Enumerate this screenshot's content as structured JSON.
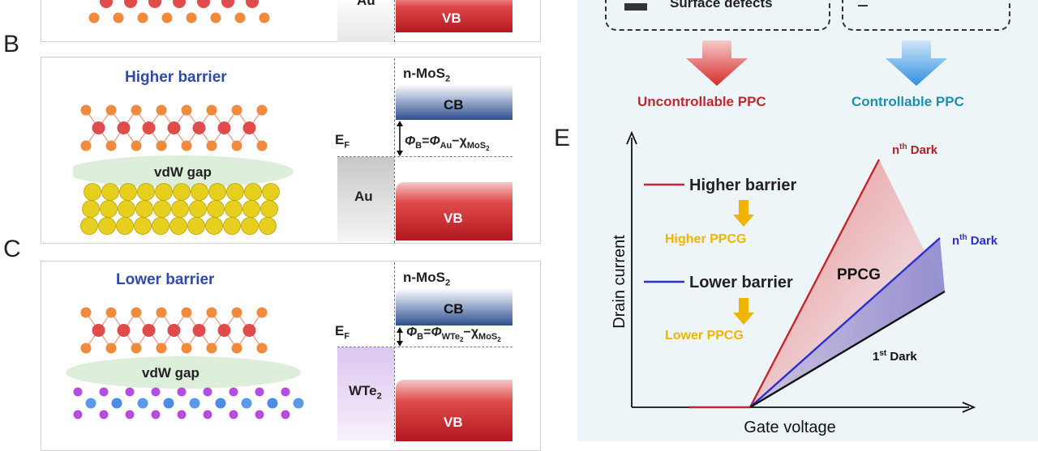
{
  "panels": {
    "b_letter": "B",
    "c_letter": "C",
    "e_letter": "E"
  },
  "top_strip": {
    "metal_label": "Au",
    "vb_label": "VB"
  },
  "panel_b": {
    "title": "Higher barrier",
    "semiconductor": "n-MoS",
    "semiconductor_sub": "2",
    "cb_label": "CB",
    "vb_label": "VB",
    "ef_label": "E",
    "ef_sub": "F",
    "gap_label": "vdW gap",
    "metal_label": "Au",
    "phi_b": "Φ",
    "phi_b_sub": "B",
    "eq": "=",
    "phi_m": "Φ",
    "phi_m_sub": "Au",
    "minus": "−",
    "chi": "χ",
    "chi_sub": "MoS",
    "chi_sub2": "2"
  },
  "panel_c": {
    "title": "Lower barrier",
    "semiconductor": "n-MoS",
    "semiconductor_sub": "2",
    "cb_label": "CB",
    "vb_label": "VB",
    "ef_label": "E",
    "ef_sub": "F",
    "gap_label": "vdW gap",
    "metal_label": "WTe",
    "metal_sub": "2",
    "phi_b": "Φ",
    "phi_b_sub": "B",
    "eq": "=",
    "phi_m": "Φ",
    "phi_m_sub": "WTe",
    "phi_m_sub2": "2",
    "minus": "−",
    "chi": "χ",
    "chi_sub": "MoS",
    "chi_sub2": "2"
  },
  "panel_d": {
    "left_box_text": "Surface defects",
    "uncontrollable": "Uncontrollable PPC",
    "controllable": "Controllable PPC",
    "uncontrollable_color": "#c0282d",
    "controllable_color": "#1d8fb0"
  },
  "panel_e": {
    "ylabel": "Drain current",
    "xlabel": "Gate voltage",
    "legend_high": "Higher barrier",
    "legend_low": "Lower barrier",
    "arrow_high": "Higher PPCG",
    "arrow_low": "Lower PPCG",
    "ppcg": "PPCG",
    "nth_dark_high_n": "n",
    "nth_dark_high_th": "th",
    "nth_dark_high_word": " Dark",
    "nth_dark_low_n": "n",
    "nth_dark_low_th": "th",
    "nth_dark_low_word": " Dark",
    "first_dark_n": "1",
    "first_dark_st": "st",
    "first_dark_word": " Dark",
    "high_color": "#c0282d",
    "low_color": "#2a2fd0",
    "ppcg_color": "#f0b400"
  }
}
